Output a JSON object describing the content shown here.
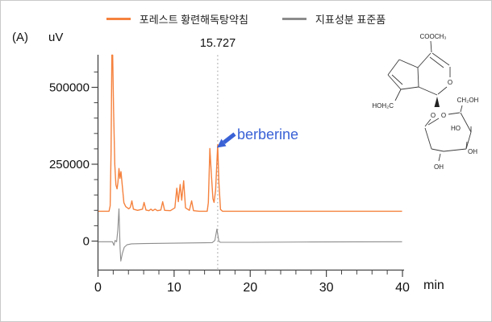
{
  "panel_label": "(A)",
  "y_axis_unit": "uV",
  "x_axis_unit": "min",
  "legend": [
    {
      "label": "포레스트 황련해독탕약침",
      "color": "#F5823E"
    },
    {
      "label": "지표성분 표준품",
      "color": "#8C8C8C"
    }
  ],
  "annotations": {
    "retention_time": "15.727",
    "peak_label": "berberine",
    "peak_label_color": "#3A62D6",
    "marker_line_color": "#9A9A9A"
  },
  "structure": {
    "name": "geniposide",
    "labels": [
      "COOCH₃",
      "HOH₂C",
      "O",
      "O",
      "O",
      "CH₂OH",
      "HO",
      "OH",
      "OH"
    ]
  },
  "chart_data": {
    "type": "line",
    "title": "",
    "xlabel": "min",
    "ylabel": "uV",
    "xlim": [
      0,
      40
    ],
    "ylim": [
      -94000,
      602000
    ],
    "grid": false,
    "legend_position": "top",
    "x_ticks": [
      0,
      10,
      20,
      30,
      40
    ],
    "x_tick_labels": [
      "0",
      "10",
      "20",
      "30",
      "40"
    ],
    "x_minor_step": 2,
    "y_ticks": [
      0,
      250000,
      500000
    ],
    "y_tick_labels": [
      "0",
      "250000",
      "500000"
    ],
    "y_minor_step": 50000,
    "marker": {
      "x": 15.727,
      "label": "15.727"
    },
    "series": [
      {
        "name": "지표성분 표준품",
        "color": "#8C8C8C",
        "points": [
          [
            0.05,
            -2000
          ],
          [
            1.9,
            -2000
          ],
          [
            2.1,
            -14000
          ],
          [
            2.25,
            2000
          ],
          [
            2.45,
            -2000
          ],
          [
            2.6,
            35000
          ],
          [
            2.75,
            105000
          ],
          [
            2.9,
            -25000
          ],
          [
            3.0,
            -65000
          ],
          [
            3.2,
            -40000
          ],
          [
            3.45,
            -20000
          ],
          [
            3.8,
            -12000
          ],
          [
            4.4,
            -9000
          ],
          [
            6,
            -8000
          ],
          [
            9,
            -7000
          ],
          [
            12,
            -6000
          ],
          [
            15.0,
            -5000
          ],
          [
            15.35,
            2000
          ],
          [
            15.62,
            39000
          ],
          [
            15.88,
            -1000
          ],
          [
            16.1,
            -4000
          ],
          [
            20,
            -4000
          ],
          [
            28,
            -3000
          ],
          [
            39.95,
            -2000
          ]
        ]
      },
      {
        "name": "포레스트 황련해독탕약침",
        "color": "#F5823E",
        "points": [
          [
            0.05,
            97000
          ],
          [
            1.45,
            97000
          ],
          [
            1.6,
            115000
          ],
          [
            1.72,
            290000
          ],
          [
            1.82,
            605000
          ],
          [
            1.93,
            605000
          ],
          [
            2.05,
            430000
          ],
          [
            2.2,
            250000
          ],
          [
            2.35,
            183000
          ],
          [
            2.5,
            170000
          ],
          [
            2.62,
            190000
          ],
          [
            2.75,
            236000
          ],
          [
            2.88,
            204000
          ],
          [
            3.02,
            226000
          ],
          [
            3.2,
            178000
          ],
          [
            3.4,
            125000
          ],
          [
            3.65,
            112000
          ],
          [
            4.05,
            105000
          ],
          [
            4.25,
            110000
          ],
          [
            4.45,
            131000
          ],
          [
            4.65,
            104000
          ],
          [
            5.2,
            100000
          ],
          [
            5.85,
            104000
          ],
          [
            6.05,
            126000
          ],
          [
            6.3,
            101000
          ],
          [
            6.7,
            99000
          ],
          [
            6.95,
            104000
          ],
          [
            7.2,
            99000
          ],
          [
            7.5,
            104000
          ],
          [
            7.8,
            99000
          ],
          [
            8.25,
            101000
          ],
          [
            8.5,
            128000
          ],
          [
            8.75,
            100000
          ],
          [
            9.5,
            99000
          ],
          [
            10.1,
            108000
          ],
          [
            10.35,
            172000
          ],
          [
            10.55,
            128000
          ],
          [
            10.8,
            184000
          ],
          [
            11.0,
            133000
          ],
          [
            11.25,
            196000
          ],
          [
            11.5,
            108000
          ],
          [
            12.0,
            100000
          ],
          [
            12.3,
            131000
          ],
          [
            12.55,
            99000
          ],
          [
            13.3,
            97000
          ],
          [
            14.35,
            97000
          ],
          [
            14.5,
            125000
          ],
          [
            14.7,
            301000
          ],
          [
            14.9,
            215000
          ],
          [
            15.1,
            138000
          ],
          [
            15.25,
            126000
          ],
          [
            15.45,
            165000
          ],
          [
            15.72,
            314000
          ],
          [
            15.88,
            190000
          ],
          [
            16.1,
            103000
          ],
          [
            16.35,
            97000
          ],
          [
            39.95,
            97000
          ]
        ]
      }
    ]
  }
}
